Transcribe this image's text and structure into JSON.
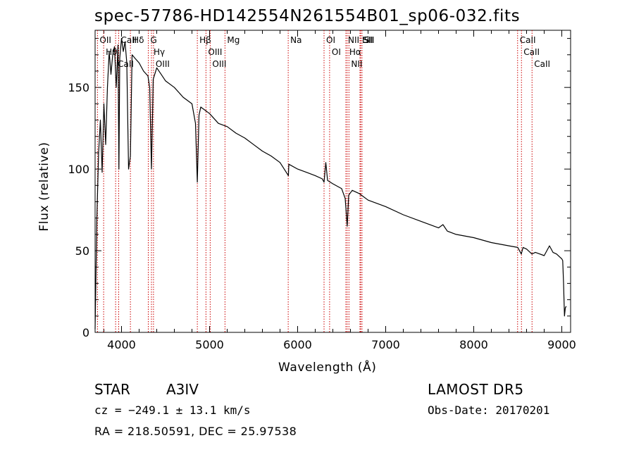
{
  "chart_data": {
    "type": "line",
    "title": "spec-57786-HD142554N261554B01_sp06-032.fits",
    "xlabel": "Wavelength (Å)",
    "ylabel": "Flux (relative)",
    "xlim": [
      3700,
      9100
    ],
    "ylim": [
      0,
      185
    ],
    "x_ticks": [
      4000,
      5000,
      6000,
      7000,
      8000,
      9000
    ],
    "y_ticks": [
      0,
      50,
      100,
      150
    ],
    "grid": false,
    "series": [
      {
        "x": [
          3700,
          3720,
          3740,
          3760,
          3780,
          3800,
          3820,
          3840,
          3860,
          3880,
          3900,
          3920,
          3940,
          3960,
          3970,
          3980,
          4000,
          4020,
          4040,
          4060,
          4080,
          4101,
          4120,
          4150,
          4200,
          4250,
          4300,
          4320,
          4340,
          4360,
          4400,
          4450,
          4500,
          4600,
          4700,
          4800,
          4840,
          4861,
          4880,
          4900,
          5000,
          5100,
          5200,
          5300,
          5400,
          5500,
          5600,
          5700,
          5800,
          5895,
          5900,
          6000,
          6100,
          6200,
          6280,
          6300,
          6320,
          6340,
          6400,
          6500,
          6540,
          6563,
          6580,
          6620,
          6700,
          6800,
          6900,
          7000,
          7200,
          7400,
          7600,
          7650,
          7700,
          7800,
          8000,
          8200,
          8400,
          8500,
          8540,
          8560,
          8600,
          8660,
          8700,
          8800,
          8860,
          8900,
          8940,
          8980,
          9000,
          9010,
          9020,
          9030,
          9040,
          9050
        ],
        "y": [
          2,
          70,
          110,
          130,
          98,
          140,
          115,
          150,
          172,
          158,
          170,
          175,
          150,
          176,
          100,
          168,
          180,
          172,
          178,
          165,
          100,
          108,
          170,
          168,
          165,
          160,
          157,
          150,
          100,
          155,
          162,
          158,
          154,
          150,
          144,
          140,
          128,
          92,
          133,
          138,
          134,
          128,
          126,
          122,
          119,
          115,
          111,
          108,
          104,
          96,
          103,
          100,
          98,
          96,
          94,
          92,
          104,
          93,
          91,
          88,
          82,
          65,
          84,
          87,
          85,
          81,
          79,
          77,
          72,
          68,
          64,
          66,
          62,
          60,
          58,
          55,
          53,
          52,
          48,
          52,
          51,
          48,
          49,
          47,
          53,
          49,
          48,
          46,
          45,
          44,
          30,
          10,
          15,
          16
        ]
      }
    ],
    "line_markers": [
      {
        "label": "Hθ",
        "x": 3797
      },
      {
        "label": "CaII",
        "x": 3933
      },
      {
        "label": "CaII",
        "x": 3968
      },
      {
        "label": "OII",
        "x": 3727
      },
      {
        "label": "Hδ",
        "x": 4101
      },
      {
        "label": "Hγ",
        "x": 4340
      },
      {
        "label": "G",
        "x": 4304
      },
      {
        "label": "OIII",
        "x": 4363
      },
      {
        "label": "Hβ",
        "x": 4861
      },
      {
        "label": "OIII",
        "x": 4959
      },
      {
        "label": "OIII",
        "x": 5007
      },
      {
        "label": "Mg",
        "x": 5175
      },
      {
        "label": "Na",
        "x": 5893
      },
      {
        "label": "OI",
        "x": 6300
      },
      {
        "label": "OI",
        "x": 6363
      },
      {
        "label": "Hα",
        "x": 6563
      },
      {
        "label": "NII",
        "x": 6548
      },
      {
        "label": "NII",
        "x": 6583
      },
      {
        "label": "Li",
        "x": 6708
      },
      {
        "label": "SII",
        "x": 6716
      },
      {
        "label": "SII",
        "x": 6731
      },
      {
        "label": "CaII",
        "x": 8498
      },
      {
        "label": "CaII",
        "x": 8542
      },
      {
        "label": "CaII",
        "x": 8662
      }
    ]
  },
  "info": {
    "class": "STAR",
    "subclass": "A3IV",
    "survey": "LAMOST DR5",
    "cz": "cz = −249.1 ± 13.1 km/s",
    "obs_date": "Obs-Date: 20170201",
    "coords": "RA = 218.50591, DEC =  25.97538"
  },
  "colors": {
    "spectrum": "#000000",
    "marker": "#cc0000",
    "background": "#ffffff"
  }
}
